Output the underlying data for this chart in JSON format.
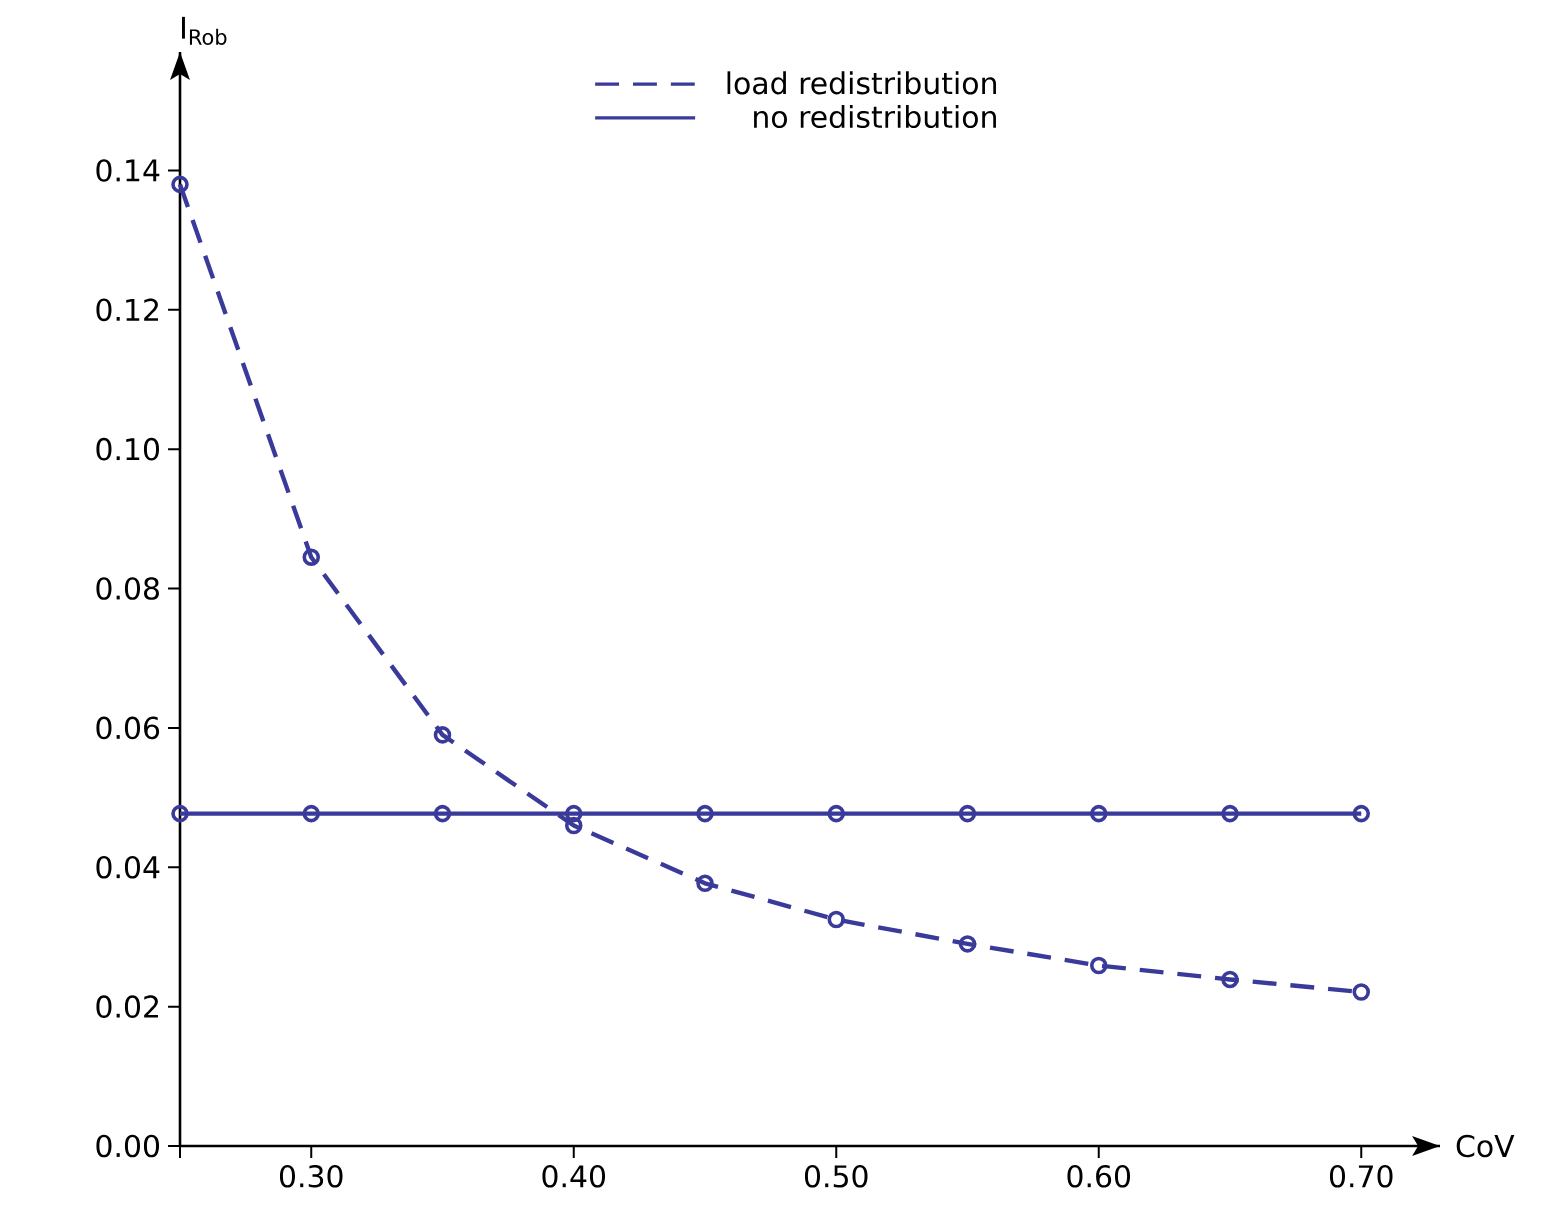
{
  "chart_data": {
    "type": "line",
    "xlabel": "CoV",
    "ylabel": "I$_{Rob}$",
    "marker": "circle",
    "legend": "top",
    "grid": false,
    "x": [
      0.25,
      0.3,
      0.35,
      0.4,
      0.45,
      0.5,
      0.55,
      0.6,
      0.65,
      0.7
    ],
    "xlim": [
      0.25,
      0.73
    ],
    "ylim": [
      0,
      0.157
    ],
    "xticks": [
      {
        "value": 0.25,
        "label": null
      },
      {
        "value": 0.3,
        "label": "0.30"
      },
      {
        "value": 0.4,
        "label": "0.40"
      },
      {
        "value": 0.5,
        "label": "0.50"
      },
      {
        "value": 0.6,
        "label": "0.60"
      },
      {
        "value": 0.7,
        "label": "0.70"
      }
    ],
    "yticks": [
      {
        "value": 0,
        "label": "0.00"
      },
      {
        "value": 0.02,
        "label": "0.02"
      },
      {
        "value": 0.04,
        "label": "0.04"
      },
      {
        "value": 0.06,
        "label": "0.06"
      },
      {
        "value": 0.08,
        "label": "0.08"
      },
      {
        "value": 0.1,
        "label": "0.10"
      },
      {
        "value": 0.12,
        "label": "0.12"
      },
      {
        "value": 0.14,
        "label": "0.14"
      }
    ],
    "series": [
      {
        "name": "load redistribution",
        "color": "#3a3a9a",
        "line_style": "dashed",
        "values": [
          0.138,
          0.0845,
          0.059,
          0.046,
          0.0377,
          0.0325,
          0.029,
          0.0259,
          0.0239,
          0.0221
        ]
      },
      {
        "name": "no redistribution",
        "color": "#3a3a9a",
        "line_style": "solid",
        "values": [
          0.0477,
          0.0477,
          0.0477,
          0.0477,
          0.0477,
          0.0477,
          0.0477,
          0.0477,
          0.0477,
          0.0477
        ]
      }
    ]
  }
}
